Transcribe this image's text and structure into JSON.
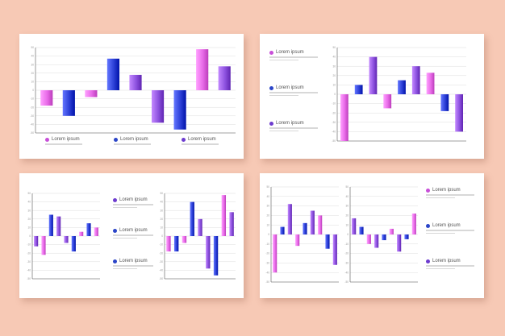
{
  "legend_text": "Lorem ipsum",
  "colors": {
    "pink": "#e86ae8",
    "blue": "#2c3fd6",
    "purple": "#8d52df",
    "dot_pink": "#c84fd8",
    "dot_blue": "#2b45c8",
    "dot_purple": "#6d3ccf"
  },
  "chart_data": [
    {
      "type": "bar",
      "yticks": [
        50,
        40,
        30,
        20,
        10,
        0,
        -10,
        -20,
        -30,
        -40,
        -50
      ],
      "ylim": [
        -50,
        50
      ],
      "grid": true,
      "legend_placement": "bottom",
      "bars": [
        {
          "value": -18,
          "color": "pink"
        },
        {
          "value": -30,
          "color": "blue"
        },
        {
          "value": -8,
          "color": "pink"
        },
        {
          "value": 37,
          "color": "blue"
        },
        {
          "value": 18,
          "color": "purple"
        },
        {
          "value": -38,
          "color": "purple"
        },
        {
          "value": -46,
          "color": "blue"
        },
        {
          "value": 48,
          "color": "pink"
        },
        {
          "value": 28,
          "color": "purple"
        }
      ]
    },
    {
      "type": "bar",
      "yticks": [
        50,
        40,
        30,
        20,
        10,
        0,
        -10,
        -20,
        -30,
        -40,
        -50
      ],
      "ylim": [
        -50,
        50
      ],
      "grid": true,
      "legend_placement": "left",
      "bars": [
        {
          "value": -50,
          "color": "pink"
        },
        {
          "value": 10,
          "color": "blue"
        },
        {
          "value": 40,
          "color": "purple"
        },
        {
          "value": -15,
          "color": "pink"
        },
        {
          "value": 15,
          "color": "blue"
        },
        {
          "value": 30,
          "color": "purple"
        },
        {
          "value": 23,
          "color": "pink"
        },
        {
          "value": -18,
          "color": "blue"
        },
        {
          "value": -40,
          "color": "purple"
        }
      ]
    },
    {
      "type": "bar",
      "yticks": [
        50,
        40,
        30,
        20,
        10,
        0,
        -10,
        -20,
        -30,
        -40,
        -50
      ],
      "ylim": [
        -50,
        50
      ],
      "grid": true,
      "bars": [
        {
          "value": -12,
          "color": "purple"
        },
        {
          "value": -22,
          "color": "pink"
        },
        {
          "value": 25,
          "color": "blue"
        },
        {
          "value": 23,
          "color": "purple"
        },
        {
          "value": -8,
          "color": "purple"
        },
        {
          "value": -18,
          "color": "blue"
        },
        {
          "value": 5,
          "color": "pink"
        },
        {
          "value": 15,
          "color": "blue"
        },
        {
          "value": 10,
          "color": "pink"
        }
      ]
    },
    {
      "type": "bar",
      "yticks": [
        50,
        40,
        30,
        20,
        10,
        0,
        -10,
        -20,
        -30,
        -40,
        -50
      ],
      "ylim": [
        -50,
        50
      ],
      "grid": true,
      "bars": [
        {
          "value": -18,
          "color": "pink"
        },
        {
          "value": -18,
          "color": "blue"
        },
        {
          "value": -8,
          "color": "pink"
        },
        {
          "value": 40,
          "color": "blue"
        },
        {
          "value": 20,
          "color": "purple"
        },
        {
          "value": -38,
          "color": "purple"
        },
        {
          "value": -46,
          "color": "blue"
        },
        {
          "value": 48,
          "color": "pink"
        },
        {
          "value": 28,
          "color": "purple"
        }
      ]
    },
    {
      "type": "bar",
      "yticks": [
        50,
        40,
        30,
        20,
        10,
        0,
        -10,
        -20,
        -30,
        -40,
        -50
      ],
      "ylim": [
        -50,
        50
      ],
      "grid": true,
      "legend_placement": "right",
      "bars": [
        {
          "value": -40,
          "color": "pink"
        },
        {
          "value": 8,
          "color": "blue"
        },
        {
          "value": 32,
          "color": "purple"
        },
        {
          "value": -12,
          "color": "pink"
        },
        {
          "value": 12,
          "color": "blue"
        },
        {
          "value": 25,
          "color": "purple"
        },
        {
          "value": 20,
          "color": "pink"
        },
        {
          "value": -15,
          "color": "blue"
        },
        {
          "value": -32,
          "color": "purple"
        }
      ]
    },
    {
      "type": "bar",
      "yticks": [
        50,
        40,
        30,
        20,
        10,
        0,
        -10,
        -20,
        -30,
        -40,
        -50
      ],
      "ylim": [
        -50,
        50
      ],
      "grid": true,
      "bars": [
        {
          "value": 17,
          "color": "purple"
        },
        {
          "value": 8,
          "color": "blue"
        },
        {
          "value": -10,
          "color": "pink"
        },
        {
          "value": -14,
          "color": "purple"
        },
        {
          "value": -6,
          "color": "blue"
        },
        {
          "value": 6,
          "color": "pink"
        },
        {
          "value": -18,
          "color": "purple"
        },
        {
          "value": -5,
          "color": "blue"
        },
        {
          "value": 22,
          "color": "pink"
        }
      ]
    }
  ]
}
